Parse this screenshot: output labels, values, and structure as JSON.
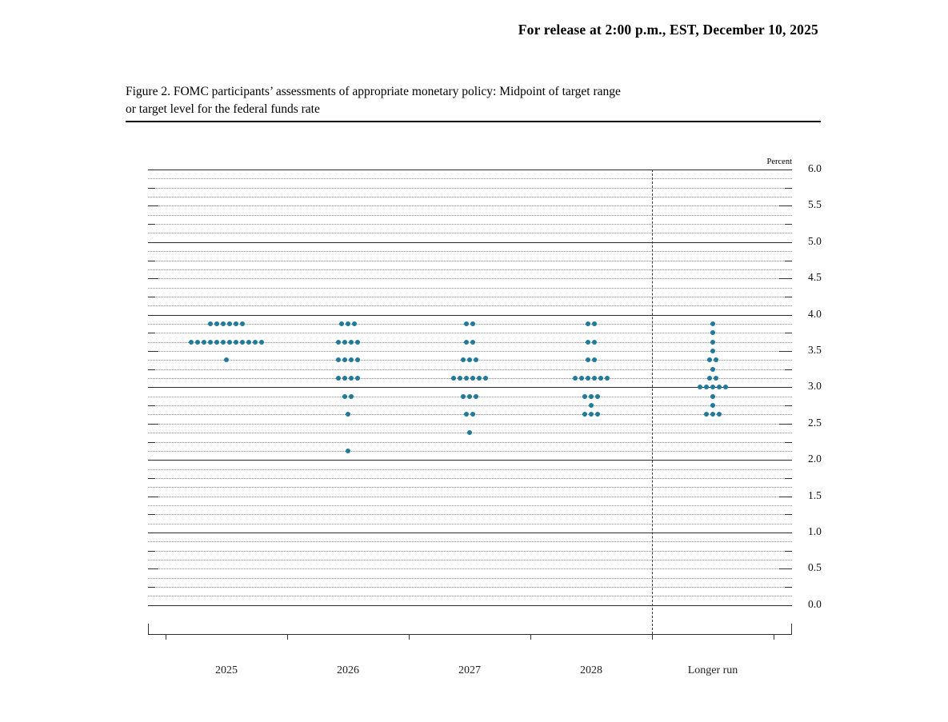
{
  "release_line": "For release at 2:00 p.m., EST, December 10, 2025",
  "figure": {
    "title_line1": "Figure 2. FOMC participants’ assessments of appropriate monetary policy: Midpoint of target range",
    "title_line2": "or target level for the federal funds rate"
  },
  "chart_data": {
    "type": "scatter",
    "subtype": "fomc-dot-plot",
    "title": "FOMC participants’ assessments of appropriate monetary policy: Midpoint of target range or target level for the federal funds rate",
    "unit_label": "Percent",
    "ylim": [
      0.0,
      6.0
    ],
    "y_label_step": 0.5,
    "y_grid_step": 0.125,
    "grid": "dotted gridlines every 1/8 percentage point; solid lines at whole percents",
    "legend_position": "none",
    "y_tick_labels": [
      "6.0",
      "5.5",
      "5.0",
      "4.5",
      "4.0",
      "3.5",
      "3.0",
      "2.5",
      "2.0",
      "1.5",
      "1.0",
      "0.5",
      "0.0"
    ],
    "categories": [
      "2025",
      "2026",
      "2027",
      "2028",
      "Longer run"
    ],
    "separator_before_category": "Longer run",
    "dot_color": "#1d7aa0",
    "series": [
      {
        "category": "2025",
        "dots": [
          {
            "value": 3.875,
            "count": 6
          },
          {
            "value": 3.625,
            "count": 12
          },
          {
            "value": 3.375,
            "count": 1
          }
        ]
      },
      {
        "category": "2026",
        "dots": [
          {
            "value": 3.875,
            "count": 3
          },
          {
            "value": 3.625,
            "count": 4
          },
          {
            "value": 3.375,
            "count": 4
          },
          {
            "value": 3.125,
            "count": 4
          },
          {
            "value": 2.875,
            "count": 2
          },
          {
            "value": 2.625,
            "count": 1
          },
          {
            "value": 2.125,
            "count": 1
          }
        ]
      },
      {
        "category": "2027",
        "dots": [
          {
            "value": 3.875,
            "count": 2
          },
          {
            "value": 3.625,
            "count": 2
          },
          {
            "value": 3.375,
            "count": 3
          },
          {
            "value": 3.125,
            "count": 6
          },
          {
            "value": 2.875,
            "count": 3
          },
          {
            "value": 2.625,
            "count": 2
          },
          {
            "value": 2.375,
            "count": 1
          }
        ]
      },
      {
        "category": "2028",
        "dots": [
          {
            "value": 3.875,
            "count": 2
          },
          {
            "value": 3.625,
            "count": 2
          },
          {
            "value": 3.375,
            "count": 2
          },
          {
            "value": 3.125,
            "count": 6
          },
          {
            "value": 2.875,
            "count": 3
          },
          {
            "value": 2.75,
            "count": 1
          },
          {
            "value": 2.625,
            "count": 3
          }
        ]
      },
      {
        "category": "Longer run",
        "dots": [
          {
            "value": 3.875,
            "count": 1
          },
          {
            "value": 3.75,
            "count": 1
          },
          {
            "value": 3.625,
            "count": 1
          },
          {
            "value": 3.5,
            "count": 1
          },
          {
            "value": 3.375,
            "count": 2
          },
          {
            "value": 3.25,
            "count": 1
          },
          {
            "value": 3.125,
            "count": 2
          },
          {
            "value": 3.0,
            "count": 5
          },
          {
            "value": 2.875,
            "count": 1
          },
          {
            "value": 2.75,
            "count": 1
          },
          {
            "value": 2.625,
            "count": 3
          }
        ]
      }
    ]
  }
}
